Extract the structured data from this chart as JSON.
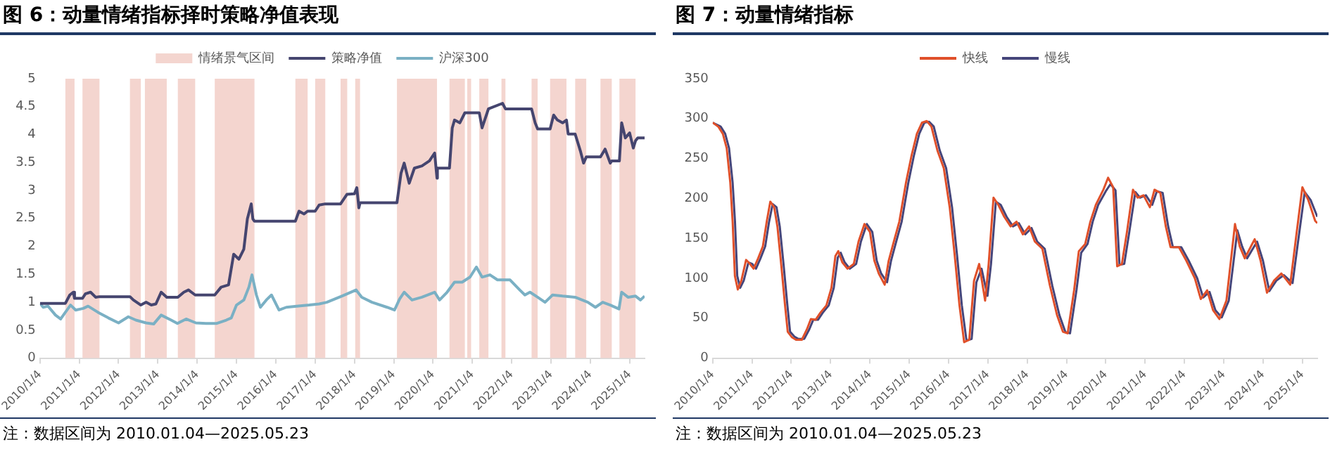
{
  "chart_data": [
    {
      "type": "line",
      "title": "图 6：动量情绪指标择时策略净值表现",
      "annotations": [
        "注：数据区间为 2010.01.04—2025.05.23"
      ],
      "legend": "top",
      "grid": false,
      "xlim": [
        "2010-01-04",
        "2025-05-23"
      ],
      "xticks": [
        {
          "value": "2010-01-04",
          "label": "2010/1/4"
        },
        {
          "value": "2011-01-04",
          "label": "2011/1/4"
        },
        {
          "value": "2012-01-04",
          "label": "2012/1/4"
        },
        {
          "value": "2013-01-04",
          "label": "2013/1/4"
        },
        {
          "value": "2014-01-04",
          "label": "2014/1/4"
        },
        {
          "value": "2015-01-04",
          "label": "2015/1/4"
        },
        {
          "value": "2016-01-04",
          "label": "2016/1/4"
        },
        {
          "value": "2017-01-04",
          "label": "2017/1/4"
        },
        {
          "value": "2018-01-04",
          "label": "2018/1/4"
        },
        {
          "value": "2019-01-04",
          "label": "2019/1/4"
        },
        {
          "value": "2020-01-04",
          "label": "2020/1/4"
        },
        {
          "value": "2021-01-04",
          "label": "2021/1/4"
        },
        {
          "value": "2022-01-04",
          "label": "2022/1/4"
        },
        {
          "value": "2023-01-04",
          "label": "2023/1/4"
        },
        {
          "value": "2024-01-04",
          "label": "2024/1/4"
        },
        {
          "value": "2025-01-04",
          "label": "2025/1/4"
        }
      ],
      "ylim": [
        0,
        5
      ],
      "yticks": [
        0,
        0.5,
        1,
        1.5,
        2,
        2.5,
        3,
        3.5,
        4,
        4.5,
        5
      ],
      "bands": [
        {
          "axis": "x",
          "from": "2010-08-28",
          "to": "2010-11-21",
          "label": "情绪景气区间",
          "color": "#f4d5cf"
        },
        {
          "axis": "x",
          "from": "2011-02-03",
          "to": "2011-07-11",
          "color": "#f4d5cf"
        },
        {
          "axis": "x",
          "from": "2012-04-19",
          "to": "2012-07-29",
          "color": "#f4d5cf"
        },
        {
          "axis": "x",
          "from": "2012-09-05",
          "to": "2013-03-27",
          "color": "#f4d5cf"
        },
        {
          "axis": "x",
          "from": "2013-07-08",
          "to": "2013-12-16",
          "color": "#f4d5cf"
        },
        {
          "axis": "x",
          "from": "2014-06-16",
          "to": "2015-06-20",
          "color": "#f4d5cf"
        },
        {
          "axis": "x",
          "from": "2016-07-04",
          "to": "2016-10-26",
          "color": "#f4d5cf"
        },
        {
          "axis": "x",
          "from": "2017-01-04",
          "to": "2017-04-08",
          "color": "#f4d5cf"
        },
        {
          "axis": "x",
          "from": "2017-08-28",
          "to": "2017-10-29",
          "color": "#f4d5cf"
        },
        {
          "axis": "x",
          "from": "2018-01-11",
          "to": "2018-02-25",
          "color": "#f4d5cf"
        },
        {
          "axis": "x",
          "from": "2019-02-03",
          "to": "2020-02-10",
          "color": "#f4d5cf"
        },
        {
          "axis": "x",
          "from": "2020-06-05",
          "to": "2020-10-26",
          "color": "#f4d5cf"
        },
        {
          "axis": "x",
          "from": "2020-11-17",
          "to": "2020-12-23",
          "color": "#f4d5cf"
        },
        {
          "axis": "x",
          "from": "2021-03-09",
          "to": "2021-06-02",
          "color": "#f4d5cf"
        },
        {
          "axis": "x",
          "from": "2021-10-01",
          "to": "2021-11-07",
          "color": "#f4d5cf"
        },
        {
          "axis": "x",
          "from": "2022-07-08",
          "to": "2022-09-02",
          "color": "#f4d5cf"
        },
        {
          "axis": "x",
          "from": "2022-12-27",
          "to": "2023-05-28",
          "color": "#f4d5cf"
        },
        {
          "axis": "x",
          "from": "2023-08-17",
          "to": "2023-11-28",
          "color": "#f4d5cf"
        },
        {
          "axis": "x",
          "from": "2024-04-08",
          "to": "2024-07-22",
          "color": "#f4d5cf"
        },
        {
          "axis": "x",
          "from": "2024-10-01",
          "to": "2025-02-28",
          "color": "#f4d5cf"
        }
      ],
      "series": [
        {
          "name": "策略净值",
          "color": "#45456f",
          "x": [
            "2010-01-04",
            "2010-08-28",
            "2010-10-08",
            "2010-11-10",
            "2010-11-21",
            "2011-02-03",
            "2011-03-02",
            "2011-04-19",
            "2011-06-05",
            "2011-07-11",
            "2012-04-19",
            "2012-05-21",
            "2012-07-29",
            "2012-09-16",
            "2012-11-03",
            "2012-12-16",
            "2013-02-03",
            "2013-03-27",
            "2013-07-08",
            "2013-09-02",
            "2013-10-15",
            "2013-12-16",
            "2014-06-16",
            "2014-08-14",
            "2014-10-22",
            "2014-12-09",
            "2015-01-26",
            "2015-03-13",
            "2015-04-15",
            "2015-05-21",
            "2015-06-05",
            "2015-06-20",
            "2016-07-04",
            "2016-08-07",
            "2016-09-23",
            "2016-10-26",
            "2017-01-04",
            "2017-02-10",
            "2017-04-08",
            "2017-08-28",
            "2017-10-26",
            "2018-01-04",
            "2018-01-26",
            "2018-02-14",
            "2018-02-25",
            "2019-02-03",
            "2019-03-13",
            "2019-04-11",
            "2019-05-28",
            "2019-07-15",
            "2019-09-23",
            "2019-12-02",
            "2020-01-19",
            "2020-02-10",
            "2020-02-14",
            "2020-06-05",
            "2020-07-01",
            "2020-07-22",
            "2020-09-09",
            "2020-10-26",
            "2021-03-09",
            "2021-04-04",
            "2021-05-21",
            "2021-06-02",
            "2021-10-11",
            "2021-11-07",
            "2022-07-08",
            "2022-08-10",
            "2022-09-02",
            "2022-12-27",
            "2023-01-29",
            "2023-03-05",
            "2023-04-22",
            "2023-05-28",
            "2023-06-13",
            "2023-08-17",
            "2023-10-04",
            "2023-11-03",
            "2023-11-28",
            "2024-04-08",
            "2024-05-21",
            "2024-07-08",
            "2024-07-22",
            "2024-10-01",
            "2024-10-22",
            "2024-11-25",
            "2025-01-04",
            "2025-02-07",
            "2025-02-28",
            "2025-03-20",
            "2025-05-23"
          ],
          "values": [
            0.98,
            0.98,
            1.13,
            1.18,
            1.07,
            1.07,
            1.15,
            1.18,
            1.09,
            1.1,
            1.1,
            1.04,
            0.95,
            1.0,
            0.95,
            0.97,
            1.18,
            1.09,
            1.09,
            1.18,
            1.22,
            1.13,
            1.13,
            1.27,
            1.31,
            1.86,
            1.77,
            1.95,
            2.49,
            2.76,
            2.49,
            2.45,
            2.45,
            2.63,
            2.58,
            2.63,
            2.63,
            2.74,
            2.76,
            2.76,
            2.93,
            2.94,
            3.05,
            2.69,
            2.78,
            2.78,
            3.31,
            3.49,
            3.13,
            3.4,
            3.44,
            3.53,
            3.67,
            3.22,
            3.4,
            3.4,
            4.12,
            4.26,
            4.21,
            4.39,
            4.39,
            4.12,
            4.39,
            4.46,
            4.56,
            4.46,
            4.46,
            4.21,
            4.1,
            4.1,
            4.35,
            4.26,
            4.21,
            4.26,
            4.01,
            4.01,
            3.71,
            3.49,
            3.6,
            3.6,
            3.74,
            3.49,
            3.53,
            3.53,
            4.21,
            3.94,
            4.03,
            3.76,
            3.89,
            3.94,
            3.94
          ]
        },
        {
          "name": "沪深300",
          "color": "#7ab0c4",
          "x": [
            "2010-01-04",
            "2010-02-03",
            "2010-03-20",
            "2010-05-28",
            "2010-07-15",
            "2010-08-28",
            "2010-10-15",
            "2010-12-02",
            "2011-02-10",
            "2011-03-27",
            "2011-06-27",
            "2011-10-01",
            "2012-01-04",
            "2012-04-04",
            "2012-06-13",
            "2012-09-16",
            "2012-11-25",
            "2013-02-03",
            "2013-05-07",
            "2013-07-04",
            "2013-09-23",
            "2013-12-23",
            "2014-03-27",
            "2014-07-01",
            "2014-10-01",
            "2014-11-17",
            "2015-01-04",
            "2015-03-13",
            "2015-04-29",
            "2015-05-28",
            "2015-07-08",
            "2015-08-14",
            "2015-10-08",
            "2015-11-25",
            "2016-02-03",
            "2016-04-11",
            "2016-07-15",
            "2016-11-10",
            "2017-02-10",
            "2017-04-22",
            "2017-09-09",
            "2018-01-19",
            "2018-03-13",
            "2018-06-16",
            "2018-11-03",
            "2019-01-11",
            "2019-02-28",
            "2019-04-11",
            "2019-06-23",
            "2019-09-23",
            "2020-01-19",
            "2020-03-05",
            "2020-05-14",
            "2020-07-22",
            "2020-10-01",
            "2020-12-13",
            "2021-02-10",
            "2021-04-04",
            "2021-06-16",
            "2021-08-25",
            "2021-12-20",
            "2022-03-20",
            "2022-05-07",
            "2022-06-23",
            "2022-09-02",
            "2022-11-10",
            "2023-01-19",
            "2023-04-22",
            "2023-08-17",
            "2023-12-13",
            "2024-02-21",
            "2024-04-29",
            "2024-07-08",
            "2024-09-27",
            "2024-10-22",
            "2024-12-20",
            "2025-02-28",
            "2025-04-15",
            "2025-05-23"
          ],
          "values": [
            0.98,
            0.91,
            0.93,
            0.77,
            0.7,
            0.82,
            0.95,
            0.86,
            0.89,
            0.93,
            0.82,
            0.72,
            0.63,
            0.74,
            0.68,
            0.63,
            0.61,
            0.77,
            0.68,
            0.62,
            0.7,
            0.63,
            0.62,
            0.62,
            0.68,
            0.72,
            0.95,
            1.04,
            1.27,
            1.49,
            1.13,
            0.91,
            1.04,
            1.13,
            0.86,
            0.91,
            0.93,
            0.95,
            0.97,
            1.0,
            1.11,
            1.22,
            1.09,
            1.0,
            0.91,
            0.86,
            1.06,
            1.18,
            1.04,
            1.09,
            1.18,
            1.04,
            1.18,
            1.36,
            1.36,
            1.45,
            1.63,
            1.45,
            1.49,
            1.4,
            1.4,
            1.22,
            1.13,
            1.18,
            1.09,
            1.0,
            1.13,
            1.11,
            1.09,
            1.0,
            0.91,
            1.0,
            0.95,
            0.88,
            1.18,
            1.09,
            1.11,
            1.04,
            1.11
          ]
        }
      ]
    },
    {
      "type": "line",
      "title": "图 7：动量情绪指标",
      "annotations": [
        "注：数据区间为 2010.01.04—2025.05.23"
      ],
      "legend": "top",
      "grid": false,
      "xlim": [
        "2010-01-04",
        "2025-05-23"
      ],
      "xticks": [
        {
          "value": "2010-01-04",
          "label": "2010/1/4"
        },
        {
          "value": "2011-01-04",
          "label": "2011/1/4"
        },
        {
          "value": "2012-01-04",
          "label": "2012/1/4"
        },
        {
          "value": "2013-01-04",
          "label": "2013/1/4"
        },
        {
          "value": "2014-01-04",
          "label": "2014/1/4"
        },
        {
          "value": "2015-01-04",
          "label": "2015/1/4"
        },
        {
          "value": "2016-01-04",
          "label": "2016/1/4"
        },
        {
          "value": "2017-01-04",
          "label": "2017/1/4"
        },
        {
          "value": "2018-01-04",
          "label": "2018/1/4"
        },
        {
          "value": "2019-01-04",
          "label": "2019/1/4"
        },
        {
          "value": "2020-01-04",
          "label": "2020/1/4"
        },
        {
          "value": "2021-01-04",
          "label": "2021/1/4"
        },
        {
          "value": "2022-01-04",
          "label": "2022/1/4"
        },
        {
          "value": "2023-01-04",
          "label": "2023/1/4"
        },
        {
          "value": "2024-01-04",
          "label": "2024/1/4"
        },
        {
          "value": "2025-01-04",
          "label": "2025/1/4"
        }
      ],
      "ylim": [
        0,
        350
      ],
      "yticks": [
        0,
        50,
        100,
        150,
        200,
        250,
        300,
        350
      ],
      "series": [
        {
          "name": "快线",
          "color": "#e0502a",
          "x": [
            "2010-01-04",
            "2010-02-25",
            "2010-04-08",
            "2010-05-14",
            "2010-06-16",
            "2010-07-08",
            "2010-07-29",
            "2010-08-25",
            "2010-09-27",
            "2010-11-10",
            "2010-12-16",
            "2011-01-19",
            "2011-03-02",
            "2011-04-15",
            "2011-05-21",
            "2011-06-23",
            "2011-07-29",
            "2011-08-28",
            "2011-10-04",
            "2011-11-07",
            "2011-12-02",
            "2012-01-11",
            "2012-02-17",
            "2012-04-11",
            "2012-05-28",
            "2012-07-04",
            "2012-08-17",
            "2012-10-01",
            "2012-11-25",
            "2013-01-11",
            "2013-02-17",
            "2013-03-16",
            "2013-04-22",
            "2013-06-09",
            "2013-08-07",
            "2013-09-20",
            "2013-11-14",
            "2014-01-04",
            "2014-02-14",
            "2014-03-27",
            "2014-05-21",
            "2014-06-27",
            "2014-08-14",
            "2014-10-04",
            "2014-12-05",
            "2015-01-26",
            "2015-03-16",
            "2015-05-03",
            "2015-06-16",
            "2015-07-29",
            "2015-09-23",
            "2015-11-21",
            "2016-01-15",
            "2016-03-02",
            "2016-04-15",
            "2016-05-28",
            "2016-07-15",
            "2016-08-28",
            "2016-10-15",
            "2016-12-09",
            "2017-01-11",
            "2017-02-25",
            "2017-04-11",
            "2017-06-05",
            "2017-08-03",
            "2017-09-27",
            "2017-11-25",
            "2018-01-22",
            "2018-03-16",
            "2018-05-25",
            "2018-08-03",
            "2018-10-08",
            "2018-12-02",
            "2019-01-15",
            "2019-03-16",
            "2019-04-29",
            "2019-06-27",
            "2019-08-14",
            "2019-10-04",
            "2019-12-13",
            "2020-01-26",
            "2020-03-13",
            "2020-04-19",
            "2020-06-02",
            "2020-07-19",
            "2020-09-13",
            "2020-10-26",
            "2020-12-20",
            "2021-02-17",
            "2021-04-01",
            "2021-05-25",
            "2021-07-15",
            "2021-08-28",
            "2021-11-14",
            "2022-01-22",
            "2022-04-11",
            "2022-06-05",
            "2022-08-03",
            "2022-09-27",
            "2022-11-25",
            "2023-01-29",
            "2023-04-19",
            "2023-06-02",
            "2023-07-19",
            "2023-10-19",
            "2023-12-13",
            "2024-02-10",
            "2024-04-15",
            "2024-06-23",
            "2024-09-13",
            "2024-11-07",
            "2025-01-04",
            "2025-02-28",
            "2025-05-03",
            "2025-05-23"
          ],
          "values": [
            295,
            290,
            281,
            263,
            220,
            171,
            103,
            86,
            97,
            123,
            118,
            112,
            125,
            140,
            171,
            196,
            189,
            165,
            115,
            66,
            33,
            26,
            23,
            23,
            36,
            49,
            48,
            57,
            66,
            88,
            128,
            134,
            120,
            112,
            118,
            146,
            168,
            158,
            122,
            106,
            92,
            122,
            146,
            171,
            220,
            254,
            281,
            295,
            297,
            290,
            260,
            238,
            189,
            128,
            66,
            20,
            23,
            97,
            118,
            72,
            118,
            201,
            192,
            177,
            165,
            171,
            155,
            165,
            146,
            137,
            91,
            54,
            33,
            31,
            85,
            134,
            143,
            171,
            192,
            211,
            226,
            214,
            115,
            118,
            158,
            211,
            201,
            204,
            189,
            211,
            207,
            165,
            139,
            139,
            122,
            100,
            74,
            85,
            60,
            49,
            72,
            168,
            140,
            125,
            149,
            122,
            82,
            97,
            106,
            92,
            152,
            214,
            198,
            172,
            169
          ]
        },
        {
          "name": "慢线",
          "color": "#45457a",
          "x": [
            "2010-01-04",
            "2010-03-19",
            "2010-04-30",
            "2010-06-05",
            "2010-07-08",
            "2010-07-30",
            "2010-08-20",
            "2010-09-16",
            "2010-10-19",
            "2010-12-02",
            "2011-01-07",
            "2011-02-10",
            "2011-03-24",
            "2011-05-07",
            "2011-06-12",
            "2011-07-15",
            "2011-08-20",
            "2011-09-19",
            "2011-10-26",
            "2011-11-29",
            "2011-12-24",
            "2012-02-02",
            "2012-03-10",
            "2012-05-03",
            "2012-06-19",
            "2012-07-26",
            "2012-09-08",
            "2012-10-23",
            "2012-12-17",
            "2013-02-02",
            "2013-03-11",
            "2013-04-07",
            "2013-05-14",
            "2013-07-01",
            "2013-08-29",
            "2013-10-12",
            "2013-12-06",
            "2014-01-26",
            "2014-03-08",
            "2014-04-18",
            "2014-06-12",
            "2014-07-19",
            "2014-09-05",
            "2014-10-26",
            "2014-12-27",
            "2015-02-17",
            "2015-04-07",
            "2015-05-25",
            "2015-07-08",
            "2015-08-20",
            "2015-10-15",
            "2015-12-13",
            "2016-02-06",
            "2016-03-24",
            "2016-05-07",
            "2016-06-19",
            "2016-08-06",
            "2016-09-19",
            "2016-11-06",
            "2016-12-31",
            "2017-02-02",
            "2017-03-19",
            "2017-05-03",
            "2017-06-27",
            "2017-08-25",
            "2017-10-19",
            "2017-12-17",
            "2018-02-13",
            "2018-04-07",
            "2018-06-16",
            "2018-08-25",
            "2018-10-30",
            "2018-12-24",
            "2019-02-06",
            "2019-04-07",
            "2019-05-21",
            "2019-07-19",
            "2019-09-05",
            "2019-10-26",
            "2020-01-04",
            "2020-02-17",
            "2020-04-04",
            "2020-05-11",
            "2020-06-24",
            "2020-08-10",
            "2020-10-05",
            "2020-11-17",
            "2021-01-11",
            "2021-03-11",
            "2021-04-23",
            "2021-06-16",
            "2021-08-06",
            "2021-09-19",
            "2021-12-06",
            "2022-02-13",
            "2022-05-03",
            "2022-06-27",
            "2022-08-25",
            "2022-10-19",
            "2022-12-17",
            "2023-02-20",
            "2023-05-11",
            "2023-06-24",
            "2023-08-10",
            "2023-11-10",
            "2024-01-04",
            "2024-03-03",
            "2024-05-07",
            "2024-07-15",
            "2024-10-05",
            "2024-11-29",
            "2025-01-26",
            "2025-03-22",
            "2025-05-23"
          ],
          "values": [
            295,
            290,
            281,
            263,
            220,
            171,
            103,
            88,
            97,
            120,
            118,
            112,
            125,
            140,
            171,
            193,
            189,
            165,
            115,
            66,
            33,
            27,
            24,
            24,
            36,
            48,
            48,
            57,
            66,
            88,
            126,
            132,
            120,
            112,
            118,
            146,
            168,
            158,
            122,
            106,
            95,
            122,
            146,
            171,
            220,
            254,
            281,
            295,
            296,
            290,
            260,
            238,
            189,
            128,
            66,
            22,
            24,
            95,
            112,
            78,
            118,
            196,
            192,
            177,
            165,
            169,
            155,
            163,
            146,
            137,
            91,
            54,
            33,
            31,
            85,
            132,
            143,
            171,
            192,
            209,
            218,
            210,
            117,
            118,
            158,
            208,
            201,
            204,
            192,
            209,
            207,
            165,
            139,
            139,
            122,
            100,
            76,
            83,
            60,
            51,
            72,
            160,
            140,
            125,
            146,
            122,
            84,
            97,
            104,
            94,
            150,
            208,
            198,
            177
          ]
        }
      ]
    }
  ]
}
